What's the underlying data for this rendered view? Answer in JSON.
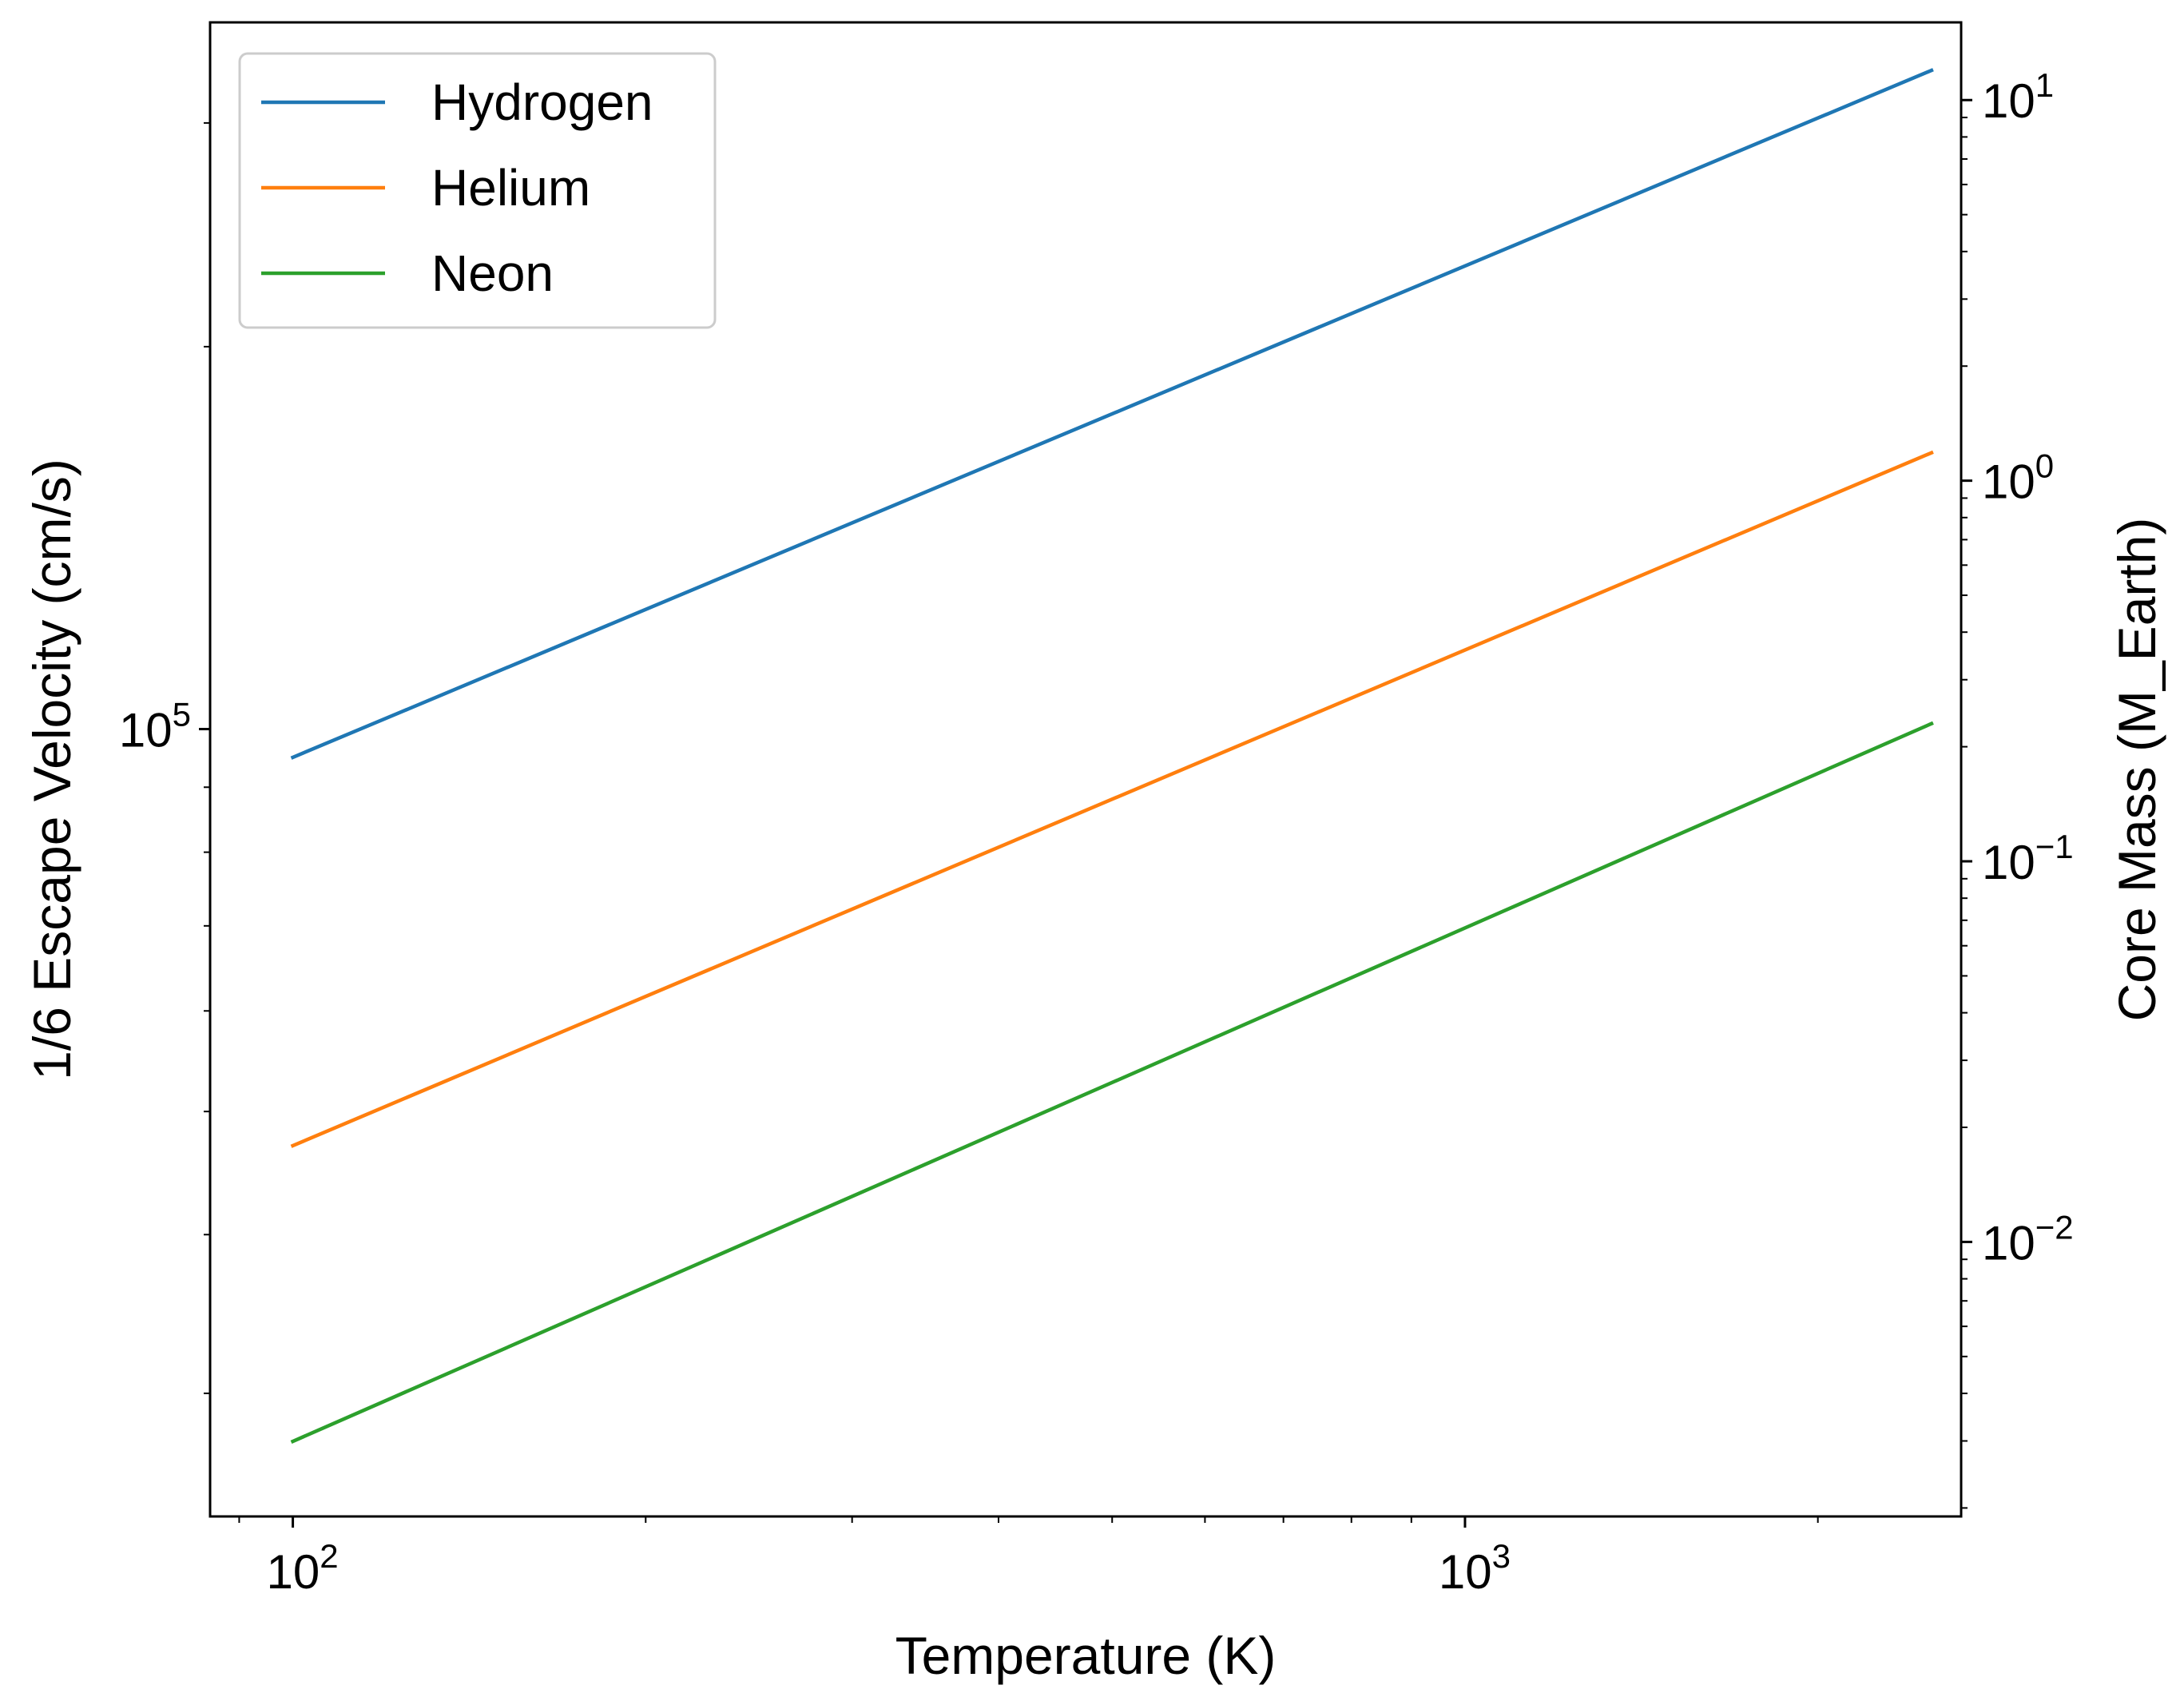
{
  "chart_data": {
    "type": "line",
    "xlabel": "Temperature (K)",
    "ylabel_left": "1/6 Escape Velocity (cm/s)",
    "ylabel_right": "Core Mass (M_Earth)",
    "x_scale": "log",
    "y_scale_left": "log",
    "y_scale_right": "log",
    "xlim": [
      85,
      2650
    ],
    "ylim_left": [
      24000,
      360000
    ],
    "ylim_right": [
      0.0019,
      16
    ],
    "x_ticks": [
      {
        "value": 100,
        "base": "10",
        "exp": "2"
      },
      {
        "value": 1000,
        "base": "10",
        "exp": "3"
      }
    ],
    "y_left_ticks": [
      {
        "value": 100000,
        "base": "10",
        "exp": "5"
      }
    ],
    "y_right_ticks": [
      {
        "value": 10,
        "base": "10",
        "exp": "1"
      },
      {
        "value": 1,
        "base": "10",
        "exp": "0"
      },
      {
        "value": 0.1,
        "base": "10",
        "exp": "−1"
      },
      {
        "value": 0.01,
        "base": "10",
        "exp": "−2"
      }
    ],
    "grid": false,
    "legend_position": "top-left",
    "series": [
      {
        "name": "Hydrogen",
        "color": "#1f77b4",
        "x": [
          100,
          2500
        ],
        "y": [
          95000,
          330000
        ]
      },
      {
        "name": "Helium",
        "color": "#ff7f0e",
        "x": [
          100,
          2500
        ],
        "y": [
          47000,
          165000
        ]
      },
      {
        "name": "Neon",
        "color": "#2ca02c",
        "x": [
          100,
          2500
        ],
        "y": [
          27500,
          101000
        ]
      }
    ]
  }
}
